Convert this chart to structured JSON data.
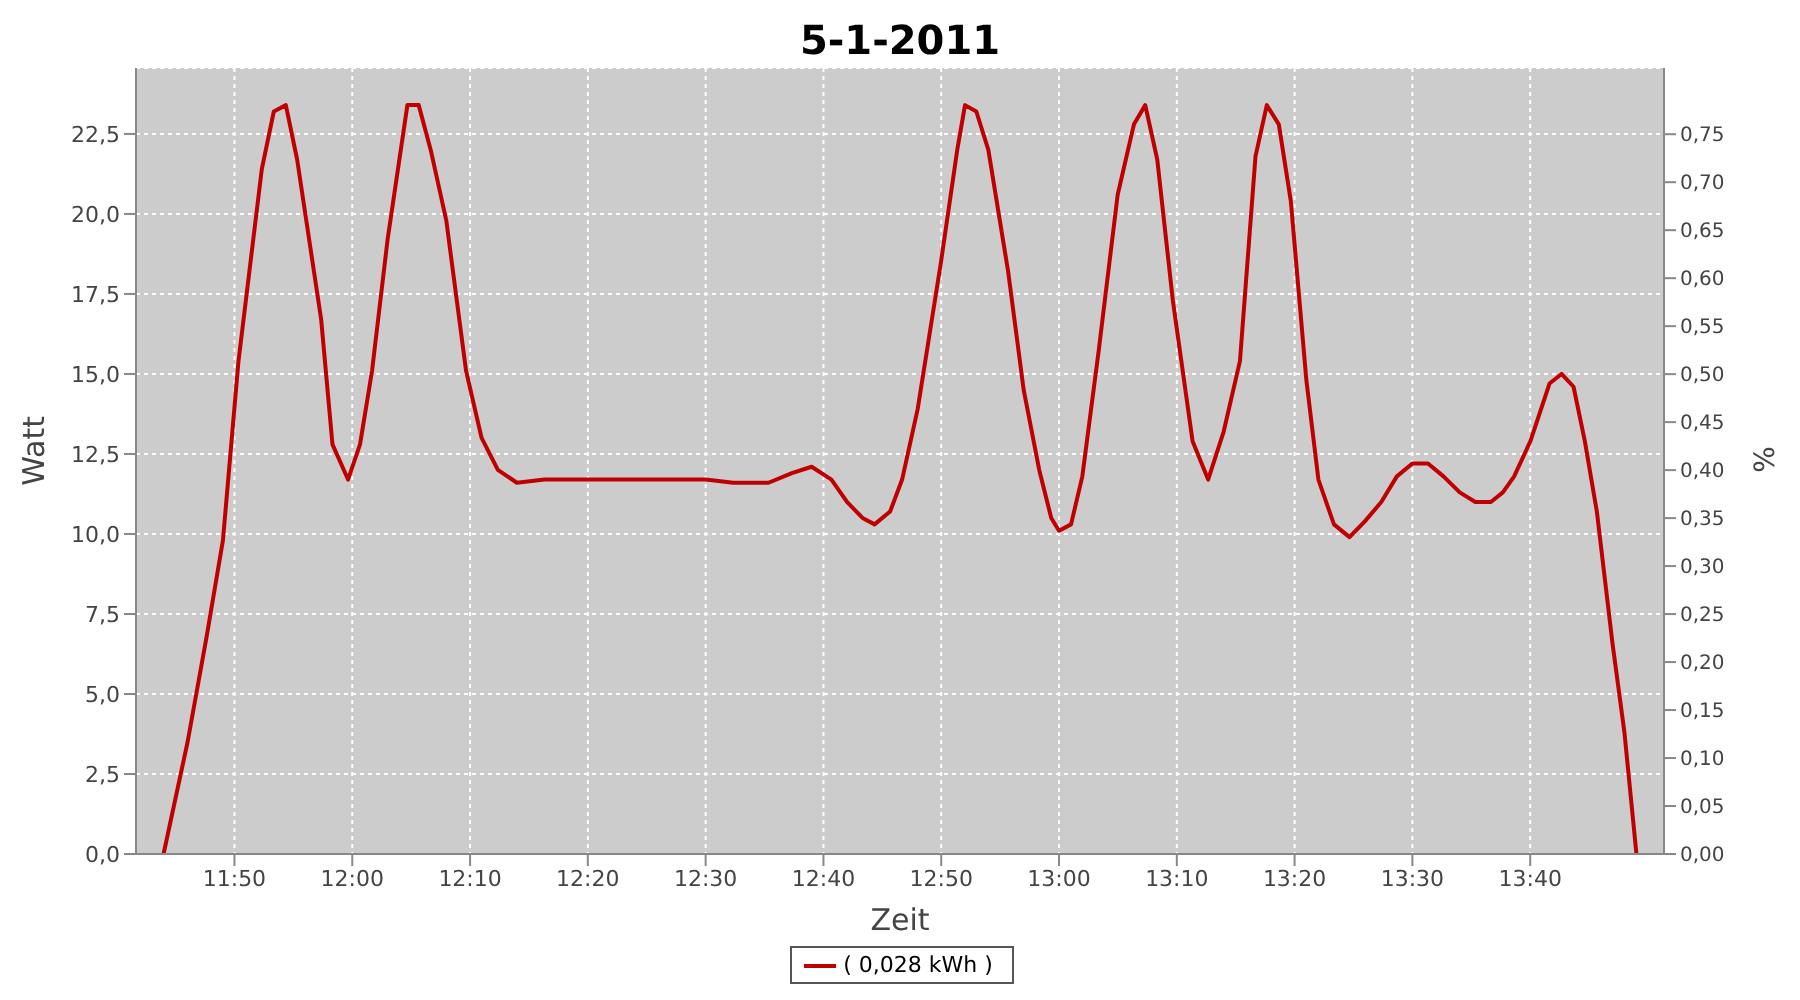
{
  "chart_data": {
    "type": "line",
    "title": "5-1-2011",
    "xlabel": "Zeit",
    "ylabel": "Watt",
    "y2label": "%",
    "legend": "bottom",
    "grid": true,
    "marker": "none",
    "line_style": "solid",
    "xlim": [
      11.694,
      13.856
    ],
    "xticks": [
      {
        "value": 11.8333,
        "label": "11:50"
      },
      {
        "value": 12,
        "label": "12:00"
      },
      {
        "value": 12.1667,
        "label": "12:10"
      },
      {
        "value": 12.3333,
        "label": "12:20"
      },
      {
        "value": 12.5,
        "label": "12:30"
      },
      {
        "value": 12.6667,
        "label": "12:40"
      },
      {
        "value": 12.8333,
        "label": "12:50"
      },
      {
        "value": 13,
        "label": "13:00"
      },
      {
        "value": 13.1667,
        "label": "13:10"
      },
      {
        "value": 13.3333,
        "label": "13:20"
      },
      {
        "value": 13.5,
        "label": "13:30"
      },
      {
        "value": 13.6667,
        "label": "13:40"
      }
    ],
    "ylim": [
      0,
      24.56
    ],
    "yticks": [
      {
        "value": 0,
        "label": "0,0"
      },
      {
        "value": 2.5,
        "label": "2,5"
      },
      {
        "value": 5,
        "label": "5,0"
      },
      {
        "value": 7.5,
        "label": "7,5"
      },
      {
        "value": 10,
        "label": "10,0"
      },
      {
        "value": 12.5,
        "label": "12,5"
      },
      {
        "value": 15,
        "label": "15,0"
      },
      {
        "value": 17.5,
        "label": "17,5"
      },
      {
        "value": 20,
        "label": "20,0"
      },
      {
        "value": 22.5,
        "label": "22,5"
      }
    ],
    "y2lim": [
      0,
      0.819
    ],
    "y2ticks": [
      {
        "value": 0,
        "label": "0,00"
      },
      {
        "value": 0.05,
        "label": "0,05"
      },
      {
        "value": 0.1,
        "label": "0,10"
      },
      {
        "value": 0.15,
        "label": "0,15"
      },
      {
        "value": 0.2,
        "label": "0,20"
      },
      {
        "value": 0.25,
        "label": "0,25"
      },
      {
        "value": 0.3,
        "label": "0,30"
      },
      {
        "value": 0.35,
        "label": "0,35"
      },
      {
        "value": 0.4,
        "label": "0,40"
      },
      {
        "value": 0.45,
        "label": "0,45"
      },
      {
        "value": 0.5,
        "label": "0,50"
      },
      {
        "value": 0.55,
        "label": "0,55"
      },
      {
        "value": 0.6,
        "label": "0,60"
      },
      {
        "value": 0.65,
        "label": "0,65"
      },
      {
        "value": 0.7,
        "label": "0,70"
      },
      {
        "value": 0.75,
        "label": "0,75"
      }
    ],
    "x": [
      11.733,
      11.767,
      11.794,
      11.817,
      11.839,
      11.872,
      11.889,
      11.906,
      11.922,
      11.956,
      11.972,
      11.994,
      12.011,
      12.028,
      12.05,
      12.078,
      12.094,
      12.111,
      12.133,
      12.161,
      12.183,
      12.206,
      12.233,
      12.272,
      12.333,
      12.389,
      12.444,
      12.5,
      12.539,
      12.589,
      12.622,
      12.65,
      12.678,
      12.7,
      12.722,
      12.739,
      12.761,
      12.778,
      12.8,
      12.833,
      12.856,
      12.867,
      12.883,
      12.9,
      12.928,
      12.95,
      12.972,
      12.989,
      13,
      13.017,
      13.033,
      13.056,
      13.083,
      13.106,
      13.122,
      13.139,
      13.161,
      13.189,
      13.211,
      13.233,
      13.256,
      13.278,
      13.294,
      13.311,
      13.328,
      13.35,
      13.367,
      13.389,
      13.411,
      13.433,
      13.456,
      13.478,
      13.5,
      13.522,
      13.544,
      13.567,
      13.589,
      13.611,
      13.628,
      13.644,
      13.667,
      13.694,
      13.711,
      13.728,
      13.744,
      13.761,
      13.783,
      13.8,
      13.817
    ],
    "series": [
      {
        "name": "( 0,028 kWh )",
        "color": "#c00000",
        "values": [
          0,
          3.5,
          6.8,
          9.8,
          15.4,
          21.4,
          23.2,
          23.4,
          21.7,
          16.7,
          12.8,
          11.7,
          12.8,
          15.1,
          19.2,
          23.4,
          23.4,
          22,
          19.8,
          15.1,
          13,
          12,
          11.6,
          11.7,
          11.7,
          11.7,
          11.7,
          11.7,
          11.6,
          11.6,
          11.9,
          12.1,
          11.7,
          11,
          10.5,
          10.3,
          10.7,
          11.7,
          13.9,
          18.5,
          22,
          23.4,
          23.2,
          22,
          18.2,
          14.5,
          12,
          10.5,
          10.1,
          10.3,
          11.8,
          15.7,
          20.6,
          22.8,
          23.4,
          21.7,
          17.3,
          12.9,
          11.7,
          13.2,
          15.4,
          21.8,
          23.4,
          22.8,
          20.4,
          14.8,
          11.7,
          10.3,
          9.9,
          10.4,
          11,
          11.8,
          12.2,
          12.2,
          11.8,
          11.3,
          11,
          11,
          11.3,
          11.8,
          12.9,
          14.7,
          15,
          14.6,
          12.9,
          10.7,
          6.6,
          3.8,
          0
        ]
      }
    ]
  }
}
